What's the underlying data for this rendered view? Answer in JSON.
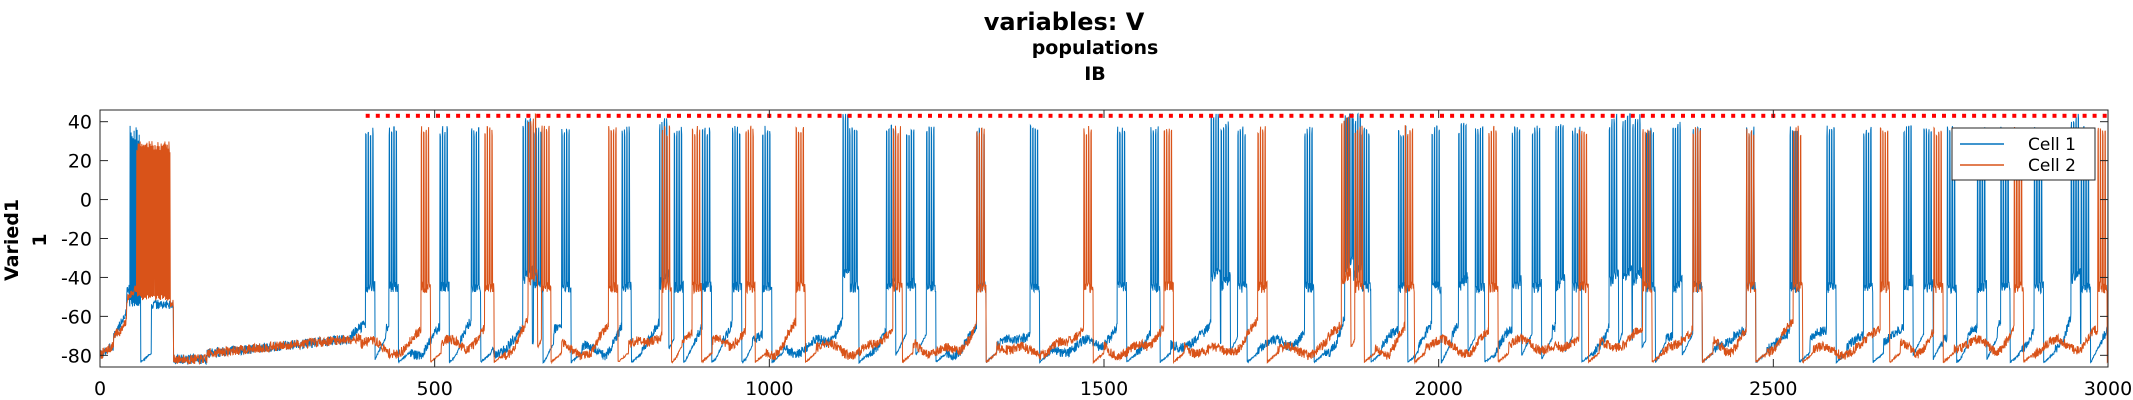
{
  "figure": {
    "title": "variables: V",
    "subtitle1": "populations",
    "subtitle2": "IB",
    "ylabel_line1": "Varied1",
    "ylabel_line2": "1"
  },
  "chart_data": {
    "type": "line",
    "xlim": [
      0,
      3000
    ],
    "ylim": [
      -86,
      46
    ],
    "x_ticks": [
      0,
      500,
      1000,
      1500,
      2000,
      2500,
      3000
    ],
    "y_ticks": [
      40,
      20,
      0,
      -20,
      -40,
      -60,
      -80
    ],
    "grid": false,
    "legend_position": "top-right",
    "colors": {
      "cell1": "#0072BD",
      "cell2": "#D95319",
      "spike_marker": "#FF0000"
    },
    "series": [
      {
        "name": "Cell 1",
        "color": "#0072BD"
      },
      {
        "name": "Cell 2",
        "color": "#D95319"
      }
    ],
    "spike_marker_level": 43,
    "spike_marker_x_range": [
      400,
      3000
    ],
    "cell1_burst_times": [
      47,
      397,
      432,
      508,
      555,
      632,
      648,
      690,
      780,
      836,
      858,
      900,
      945,
      990,
      1110,
      1120,
      1175,
      1205,
      1235,
      1310,
      1390,
      1520,
      1570,
      1660,
      1675,
      1700,
      1800,
      1860,
      1872,
      1885,
      1940,
      1990,
      2030,
      2055,
      2110,
      2140,
      2175,
      2200,
      2255,
      2275,
      2290,
      2310,
      2350,
      2380,
      2460,
      2525,
      2580,
      2635,
      2695,
      2725,
      2760,
      2805,
      2840,
      2890,
      2945,
      2960,
      3000
    ],
    "cell2_burst_times": [
      58,
      480,
      575,
      640,
      660,
      760,
      840,
      885,
      965,
      1040,
      1185,
      1310,
      1470,
      1590,
      1730,
      1855,
      1875,
      1950,
      2075,
      2210,
      2305,
      2380,
      2460,
      2530,
      2660,
      2740,
      2860,
      2985
    ]
  }
}
